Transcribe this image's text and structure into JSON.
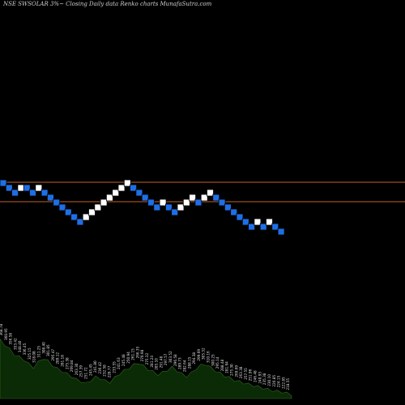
{
  "title": "NSE SWSOLAR 3%~  Closing Daily data  Renko  charts MunafaSutra.com",
  "colors": {
    "background": "#000000",
    "up_brick": "#ffffff",
    "down_brick": "#1e6fe6",
    "brick_border": "#000000",
    "level_line": "#c0632a",
    "volume_fill": "#0b2a06",
    "volume_stroke": "#2e6b1a",
    "label_text": "#e0e0e0"
  },
  "chart_data": {
    "type": "renko",
    "bricks": [
      {
        "dir": "down",
        "level": 1
      },
      {
        "dir": "down",
        "level": 2
      },
      {
        "dir": "down",
        "level": 3
      },
      {
        "dir": "up",
        "level": 2
      },
      {
        "dir": "down",
        "level": 2
      },
      {
        "dir": "down",
        "level": 3
      },
      {
        "dir": "up",
        "level": 2
      },
      {
        "dir": "down",
        "level": 3
      },
      {
        "dir": "down",
        "level": 4
      },
      {
        "dir": "down",
        "level": 5
      },
      {
        "dir": "down",
        "level": 6
      },
      {
        "dir": "down",
        "level": 7
      },
      {
        "dir": "down",
        "level": 8
      },
      {
        "dir": "down",
        "level": 9
      },
      {
        "dir": "up",
        "level": 8
      },
      {
        "dir": "up",
        "level": 7
      },
      {
        "dir": "up",
        "level": 6
      },
      {
        "dir": "up",
        "level": 5
      },
      {
        "dir": "up",
        "level": 4
      },
      {
        "dir": "up",
        "level": 3
      },
      {
        "dir": "up",
        "level": 2
      },
      {
        "dir": "up",
        "level": 1
      },
      {
        "dir": "down",
        "level": 2
      },
      {
        "dir": "down",
        "level": 3
      },
      {
        "dir": "down",
        "level": 4
      },
      {
        "dir": "down",
        "level": 5
      },
      {
        "dir": "down",
        "level": 6
      },
      {
        "dir": "up",
        "level": 5
      },
      {
        "dir": "down",
        "level": 6
      },
      {
        "dir": "down",
        "level": 7
      },
      {
        "dir": "up",
        "level": 6
      },
      {
        "dir": "up",
        "level": 5
      },
      {
        "dir": "up",
        "level": 4
      },
      {
        "dir": "down",
        "level": 5
      },
      {
        "dir": "up",
        "level": 4
      },
      {
        "dir": "up",
        "level": 3
      },
      {
        "dir": "down",
        "level": 4
      },
      {
        "dir": "down",
        "level": 5
      },
      {
        "dir": "down",
        "level": 6
      },
      {
        "dir": "down",
        "level": 7
      },
      {
        "dir": "down",
        "level": 8
      },
      {
        "dir": "down",
        "level": 9
      },
      {
        "dir": "down",
        "level": 10
      },
      {
        "dir": "up",
        "level": 9
      },
      {
        "dir": "down",
        "level": 10
      },
      {
        "dir": "up",
        "level": 9
      },
      {
        "dir": "down",
        "level": 10
      },
      {
        "dir": "down",
        "level": 11
      }
    ],
    "level_lines": [
      1.5,
      5.5
    ],
    "volume_labels": [
      "368.78",
      "360.95",
      "356.58",
      "353.42",
      "348.40",
      "336.45",
      "325.15",
      "318.08",
      "311.25",
      "308.40",
      "301.85",
      "295.47",
      "289.12",
      "281.18",
      "275.38",
      "269.84",
      "263.30",
      "257.39",
      "251.72",
      "245.45",
      "241.80",
      "236.42",
      "232.58",
      "228.77",
      "233.55",
      "241.63",
      "245.48",
      "250.94",
      "261.15",
      "266.35",
      "270.98",
      "275.32",
      "281.24",
      "285.10",
      "291.48",
      "297.57",
      "303.52",
      "296.58",
      "289.73",
      "282.64",
      "288.15",
      "294.38",
      "299.69",
      "305.32",
      "310.16",
      "300.25",
      "295.14",
      "288.48",
      "281.94",
      "275.30",
      "269.69",
      "263.38",
      "257.55",
      "251.96",
      "246.48",
      "240.93",
      "235.38",
      "230.10",
      "226.85",
      "224.15",
      "222.85",
      "218.55"
    ],
    "volume_heights": [
      0.92,
      0.85,
      0.78,
      0.7,
      0.66,
      0.62,
      0.55,
      0.5,
      0.58,
      0.64,
      0.6,
      0.53,
      0.48,
      0.44,
      0.4,
      0.36,
      0.31,
      0.28,
      0.25,
      0.3,
      0.35,
      0.33,
      0.29,
      0.27,
      0.34,
      0.4,
      0.45,
      0.49,
      0.54,
      0.57,
      0.52,
      0.47,
      0.43,
      0.39,
      0.42,
      0.46,
      0.5,
      0.45,
      0.4,
      0.36,
      0.41,
      0.48,
      0.53,
      0.55,
      0.5,
      0.45,
      0.41,
      0.37,
      0.34,
      0.3,
      0.28,
      0.26,
      0.24,
      0.22,
      0.2,
      0.18,
      0.16,
      0.14,
      0.13,
      0.12,
      0.1,
      0.08
    ]
  }
}
